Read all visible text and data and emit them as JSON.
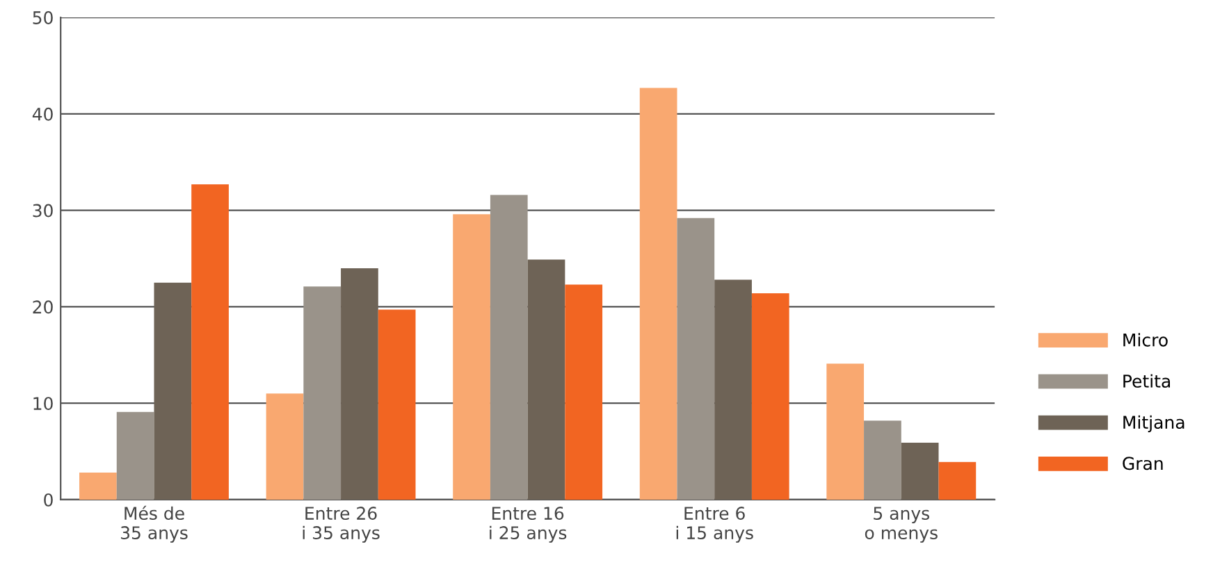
{
  "chart_data": {
    "type": "bar",
    "categories": [
      "Més de\n35 anys",
      "Entre 26\ni 35 anys",
      "Entre 16\ni 25 anys",
      "Entre 6\ni 15 anys",
      "5 anys\no menys"
    ],
    "series": [
      {
        "name": "Micro",
        "color": "#f9a870",
        "values": [
          2.8,
          11.0,
          29.6,
          42.7,
          14.1
        ]
      },
      {
        "name": "Petita",
        "color": "#9a938a",
        "values": [
          9.1,
          22.1,
          31.6,
          29.2,
          8.2
        ]
      },
      {
        "name": "Mitjana",
        "color": "#6e6356",
        "values": [
          22.5,
          24.0,
          24.9,
          22.8,
          5.9
        ]
      },
      {
        "name": "Gran",
        "color": "#f26522",
        "values": [
          32.7,
          19.7,
          22.3,
          21.4,
          3.9
        ]
      }
    ],
    "ylim": [
      0,
      50
    ],
    "yticks": [
      0,
      10,
      20,
      30,
      40,
      50
    ],
    "grid": "y",
    "legend": "right"
  }
}
